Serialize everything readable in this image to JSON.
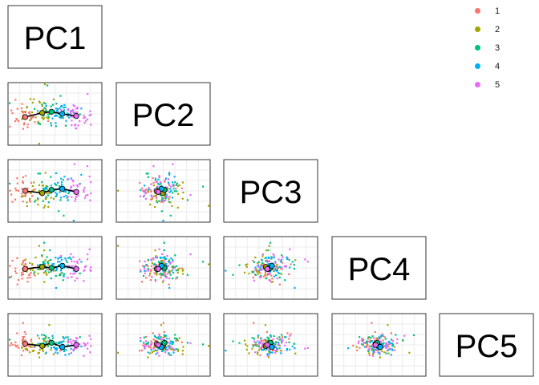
{
  "chart_data": {
    "type": "scatter",
    "panels": {
      "diagonal_labels": [
        "PC1",
        "PC2",
        "PC3",
        "PC4",
        "PC5"
      ]
    },
    "legend": {
      "placement": "top-right",
      "entries": [
        {
          "label": "1",
          "color": "#F8766D"
        },
        {
          "label": "2",
          "color": "#A3A500"
        },
        {
          "label": "3",
          "color": "#00BF7D"
        },
        {
          "label": "4",
          "color": "#00B0F6"
        },
        {
          "label": "5",
          "color": "#E76BF3"
        }
      ]
    },
    "grid": true,
    "axis_ticks": false,
    "cluster_centroids": {
      "PC1": [
        -0.9,
        -0.35,
        -0.05,
        0.3,
        0.75
      ],
      "PC2": [
        -0.15,
        0.05,
        0.1,
        0.0,
        -0.1
      ],
      "PC3": [
        0.0,
        -0.1,
        0.05,
        0.1,
        -0.05
      ],
      "PC4": [
        -0.05,
        0.05,
        0.0,
        0.1,
        -0.05
      ],
      "PC5": [
        0.05,
        -0.05,
        0.1,
        -0.1,
        0.0
      ]
    }
  }
}
